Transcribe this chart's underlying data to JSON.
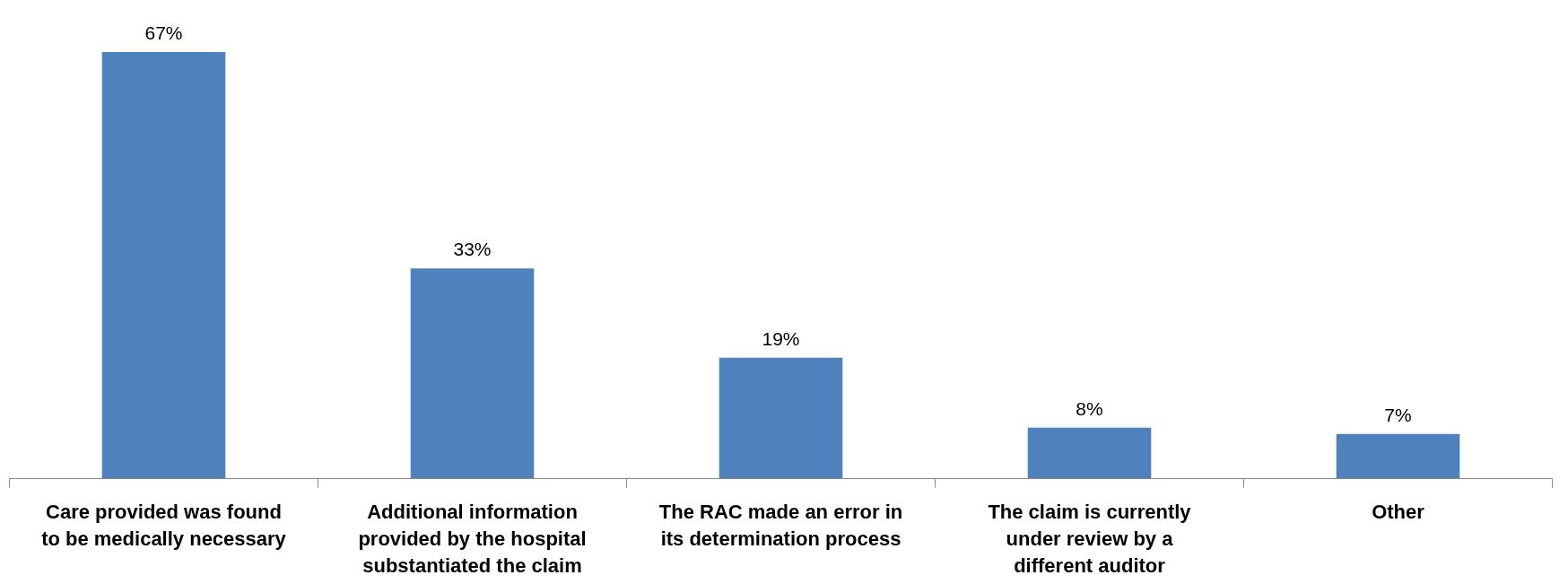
{
  "chart_data": {
    "type": "bar",
    "categories": [
      "Care provided was found to be medically necessary",
      "Additional information provided by the hospital substantiated the claim",
      "The RAC made an error in its determination process",
      "The claim is currently under review by a different auditor",
      "Other"
    ],
    "values": [
      67,
      33,
      19,
      8,
      7
    ],
    "value_labels": [
      "67%",
      "33%",
      "19%",
      "8%",
      "7%"
    ],
    "color": "#4f81bd"
  }
}
